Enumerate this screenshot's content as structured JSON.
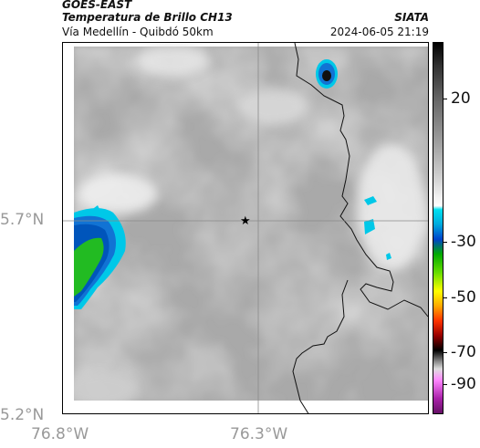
{
  "header": {
    "satellite": "GOES-EAST",
    "product": "Temperatura de Brillo CH13",
    "route": "Vía Medellín - Quibdó 50km",
    "agency": "SIATA",
    "datetime": "2024-06-05 21:19"
  },
  "axes": {
    "lat_labels": [
      "5.7°N",
      "5.2°N"
    ],
    "lon_labels": [
      "76.8°W",
      "76.3°W"
    ]
  },
  "colorbar": {
    "labels": [
      "20",
      "-30",
      "-50",
      "-70",
      "-90"
    ]
  },
  "colors": {
    "cloud_cold": "#0066cc",
    "cloud_cyan": "#00c8e8",
    "cloud_green": "#22bb22",
    "background_gray": "#a8a8a8"
  },
  "icons": {
    "marker": "star-icon"
  }
}
